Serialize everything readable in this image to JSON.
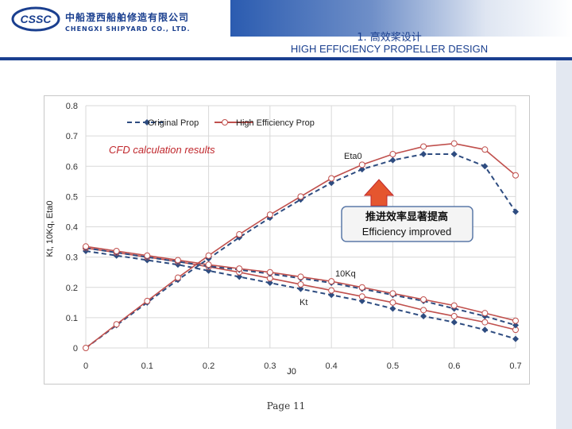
{
  "header": {
    "company_cn": "中船澄西船舶修造有限公司",
    "company_en": "CHENGXI SHIPYARD CO., LTD.",
    "logo_text": "CSSC",
    "title_cn": "1. 高效桨设计",
    "title_en": "HIGH EFFICIENCY PROPELLER DESIGN"
  },
  "footer": {
    "page_label": "Page 11"
  },
  "colors": {
    "brand": "#1a3f8f",
    "original": "#2e4c80",
    "high_eff": "#c0504d",
    "callout": "#e5562f"
  },
  "chart_data": {
    "type": "line",
    "title": "",
    "annotation_cfd": "CFD calculation results",
    "callout_cn": "推进效率显著提高",
    "callout_en": "Efficiency improved",
    "xlabel": "J0",
    "ylabel": "Kt, 10Kq, Eta0",
    "xlim": [
      0,
      0.7
    ],
    "ylim": [
      0,
      0.8
    ],
    "xticks": [
      "0",
      "0.1",
      "0.2",
      "0.3",
      "0.4",
      "0.5",
      "0.6",
      "0.7"
    ],
    "yticks": [
      "0",
      "0.1",
      "0.2",
      "0.3",
      "0.4",
      "0.5",
      "0.6",
      "0.7",
      "0.8"
    ],
    "legend": [
      "Original Prop",
      "High Efficiency Prop"
    ],
    "legend_position": "top-left",
    "curve_labels": {
      "eta": "Eta0",
      "kq": "10Kq",
      "kt": "Kt"
    },
    "x": [
      0,
      0.05,
      0.1,
      0.15,
      0.2,
      0.25,
      0.3,
      0.35,
      0.4,
      0.45,
      0.5,
      0.55,
      0.6,
      0.65,
      0.7
    ],
    "series": [
      {
        "name": "Original Prop",
        "curve": "Kt",
        "values": [
          0.32,
          0.305,
          0.29,
          0.275,
          0.255,
          0.235,
          0.215,
          0.195,
          0.175,
          0.155,
          0.13,
          0.105,
          0.085,
          0.06,
          0.03
        ]
      },
      {
        "name": "High Efficiency Prop",
        "curve": "Kt",
        "values": [
          0.33,
          0.315,
          0.3,
          0.285,
          0.268,
          0.25,
          0.23,
          0.21,
          0.19,
          0.17,
          0.15,
          0.125,
          0.105,
          0.085,
          0.06
        ]
      },
      {
        "name": "Original Prop",
        "curve": "10Kq",
        "values": [
          0.33,
          0.315,
          0.3,
          0.285,
          0.27,
          0.258,
          0.245,
          0.23,
          0.215,
          0.195,
          0.175,
          0.155,
          0.13,
          0.105,
          0.075
        ]
      },
      {
        "name": "High Efficiency Prop",
        "curve": "10Kq",
        "values": [
          0.335,
          0.32,
          0.305,
          0.29,
          0.275,
          0.262,
          0.25,
          0.235,
          0.22,
          0.2,
          0.18,
          0.16,
          0.14,
          0.115,
          0.09
        ]
      },
      {
        "name": "Original Prop",
        "curve": "Eta0",
        "values": [
          0,
          0.075,
          0.15,
          0.225,
          0.295,
          0.365,
          0.43,
          0.49,
          0.545,
          0.59,
          0.62,
          0.64,
          0.64,
          0.6,
          0.45
        ]
      },
      {
        "name": "High Efficiency Prop",
        "curve": "Eta0",
        "values": [
          0,
          0.078,
          0.155,
          0.232,
          0.305,
          0.375,
          0.44,
          0.5,
          0.56,
          0.605,
          0.64,
          0.665,
          0.675,
          0.655,
          0.57
        ]
      }
    ]
  }
}
